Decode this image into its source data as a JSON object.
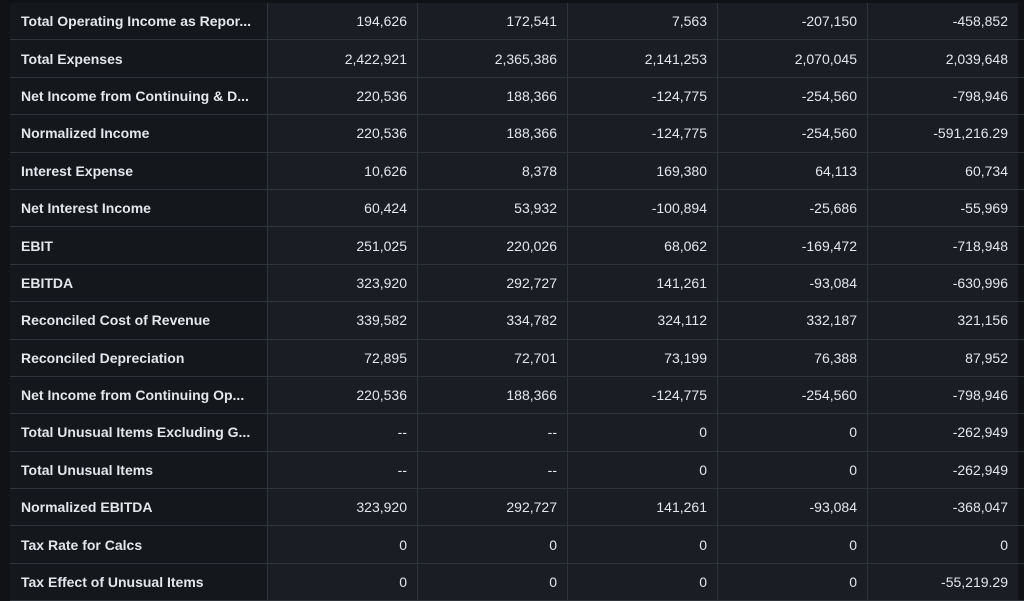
{
  "financials": {
    "rows": [
      {
        "label": "Total Operating Income as Repor...",
        "values": [
          "194,626",
          "172,541",
          "7,563",
          "-207,150",
          "-458,852"
        ]
      },
      {
        "label": "Total Expenses",
        "values": [
          "2,422,921",
          "2,365,386",
          "2,141,253",
          "2,070,045",
          "2,039,648"
        ]
      },
      {
        "label": "Net Income from Continuing & D...",
        "values": [
          "220,536",
          "188,366",
          "-124,775",
          "-254,560",
          "-798,946"
        ]
      },
      {
        "label": "Normalized Income",
        "values": [
          "220,536",
          "188,366",
          "-124,775",
          "-254,560",
          "-591,216.29"
        ]
      },
      {
        "label": "Interest Expense",
        "values": [
          "10,626",
          "8,378",
          "169,380",
          "64,113",
          "60,734"
        ]
      },
      {
        "label": "Net Interest Income",
        "values": [
          "60,424",
          "53,932",
          "-100,894",
          "-25,686",
          "-55,969"
        ]
      },
      {
        "label": "EBIT",
        "values": [
          "251,025",
          "220,026",
          "68,062",
          "-169,472",
          "-718,948"
        ]
      },
      {
        "label": "EBITDA",
        "values": [
          "323,920",
          "292,727",
          "141,261",
          "-93,084",
          "-630,996"
        ]
      },
      {
        "label": "Reconciled Cost of Revenue",
        "values": [
          "339,582",
          "334,782",
          "324,112",
          "332,187",
          "321,156"
        ]
      },
      {
        "label": "Reconciled Depreciation",
        "values": [
          "72,895",
          "72,701",
          "73,199",
          "76,388",
          "87,952"
        ]
      },
      {
        "label": "Net Income from Continuing Op...",
        "values": [
          "220,536",
          "188,366",
          "-124,775",
          "-254,560",
          "-798,946"
        ]
      },
      {
        "label": "Total Unusual Items Excluding G...",
        "values": [
          "--",
          "--",
          "0",
          "0",
          "-262,949"
        ]
      },
      {
        "label": "Total Unusual Items",
        "values": [
          "--",
          "--",
          "0",
          "0",
          "-262,949"
        ]
      },
      {
        "label": "Normalized EBITDA",
        "values": [
          "323,920",
          "292,727",
          "141,261",
          "-93,084",
          "-368,047"
        ]
      },
      {
        "label": "Tax Rate for Calcs",
        "values": [
          "0",
          "0",
          "0",
          "0",
          "0"
        ]
      },
      {
        "label": "Tax Effect of Unusual Items",
        "values": [
          "0",
          "0",
          "0",
          "0",
          "-55,219.29"
        ]
      }
    ]
  }
}
